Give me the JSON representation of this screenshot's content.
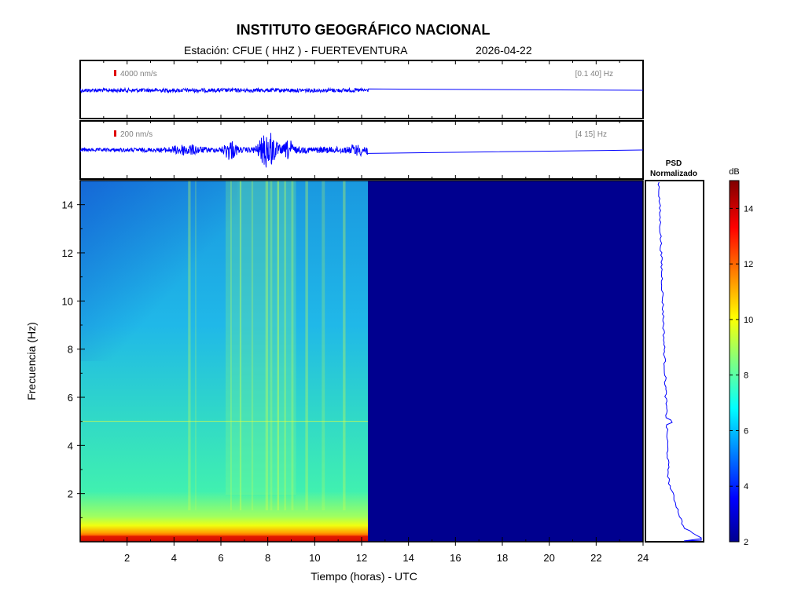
{
  "header": {
    "title": "INSTITUTO GEOGRÁFICO NACIONAL",
    "station": "Estación:  CFUE ( HHZ ) - FUERTEVENTURA",
    "date": "2026-04-22"
  },
  "traces": [
    {
      "scale_label": "4000 nm/s",
      "band_label": "[0.1 40] Hz"
    },
    {
      "scale_label": "200 nm/s",
      "band_label": "[4 15] Hz"
    }
  ],
  "psd": {
    "title_line1": "PSD",
    "title_line2": "Normalizado"
  },
  "colors": {
    "trace": "#0000ff",
    "scale_marker": "#e00000",
    "no_data": "#00008f"
  },
  "chart_data": {
    "type": "heatmap",
    "xlabel": "Tiempo (horas) - UTC",
    "ylabel": "Frecuencia  (Hz)",
    "xlim": [
      0,
      24
    ],
    "ylim": [
      0,
      15
    ],
    "xticks": [
      2,
      4,
      6,
      8,
      10,
      12,
      14,
      16,
      18,
      20,
      22,
      24
    ],
    "yticks": [
      2,
      4,
      6,
      8,
      10,
      12,
      14
    ],
    "data_end_hours": 12.3,
    "colorbar": {
      "label": "dB",
      "range": [
        2,
        15
      ],
      "ticks": [
        2,
        4,
        6,
        8,
        10,
        12,
        14
      ],
      "colormap": "jet"
    }
  }
}
